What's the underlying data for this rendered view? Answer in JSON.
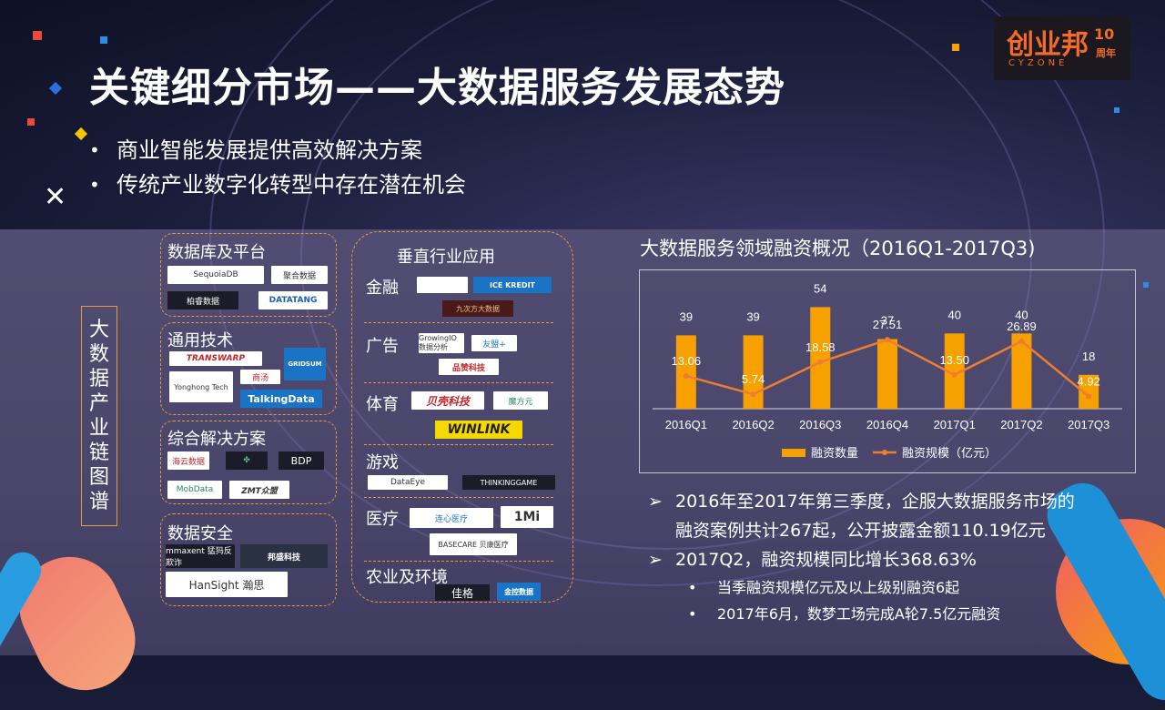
{
  "title": "关键细分市场——大数据服务发展态势",
  "bullets": [
    "商业智能发展提供高效解决方案",
    "传统产业数字化转型中存在潜在机会"
  ],
  "logo": {
    "main": "创业邦",
    "sub": "CYZONE",
    "badge": "10",
    "badge_sub": "周年"
  },
  "vertical_title": [
    "大",
    "数",
    "据",
    "产",
    "业",
    "链",
    "图",
    "谱"
  ],
  "left_sections": [
    {
      "label": "数据库及平台",
      "tags": [
        "SequoiaDB",
        "聚合数据",
        "柏睿数据",
        "DATATANG"
      ]
    },
    {
      "label": "通用技术",
      "tags": [
        "TRANSWARP",
        "GRIDSUM",
        "Yonghong Tech",
        "商汤",
        "TalkingData"
      ]
    },
    {
      "label": "综合解决方案",
      "tags": [
        "海云数据",
        "",
        "BDP",
        "MobData",
        "ZMT众盟"
      ]
    },
    {
      "label": "数据安全",
      "tags": [
        "mmaxent 猛犸反欺诈",
        "邦盛科技",
        "HanSight 瀚思"
      ]
    }
  ],
  "vertical_industry": {
    "header": "垂直行业应用",
    "rows": [
      {
        "label": "金融",
        "tags": [
          "",
          "ICE KREDIT",
          "九次方大数据"
        ]
      },
      {
        "label": "广告",
        "tags": [
          "GrowingIO 数据分析",
          "友盟+",
          "品赞科技"
        ]
      },
      {
        "label": "体育",
        "tags": [
          "贝壳科技",
          "魔方元",
          "WINLINK"
        ]
      },
      {
        "label": "游戏",
        "tags": [
          "DataEye",
          "THINKINGGAME"
        ]
      },
      {
        "label": "医疗",
        "tags": [
          "连心医疗",
          "1Mi",
          "BASECARE 贝康医疗"
        ]
      },
      {
        "label": "农业及环境",
        "tags": [
          "佳格",
          "金控数据"
        ]
      }
    ]
  },
  "chart_title": "大数据服务领域融资概况（2016Q1-2017Q3)",
  "chart_data": {
    "type": "bar",
    "categories": [
      "2016Q1",
      "2016Q2",
      "2016Q3",
      "2016Q4",
      "2017Q1",
      "2017Q2",
      "2017Q3"
    ],
    "series": [
      {
        "name": "融资数量",
        "type": "bar",
        "values": [
          39,
          39,
          54,
          37,
          40,
          40,
          18
        ]
      },
      {
        "name": "融资规模（亿元）",
        "type": "line",
        "values": [
          13.06,
          5.74,
          18.58,
          27.51,
          13.5,
          26.89,
          4.92
        ]
      }
    ],
    "colors": {
      "bar": "#f7a100",
      "line": "#ee7d32"
    },
    "legend": "bottom",
    "ylim": [
      0,
      60
    ],
    "ylim_line": [
      0,
      45
    ]
  },
  "notes": [
    {
      "level": 1,
      "text": "2016年至2017年第三季度，企服大数据服务市场的"
    },
    {
      "level": 0,
      "text": "融资案例共计267起，公开披露金额110.19亿元"
    },
    {
      "level": 1,
      "text": "2017Q2，融资规模同比增长368.63%"
    },
    {
      "level": 2,
      "text": "当季融资规模亿元及以上级别融资6起"
    },
    {
      "level": 2,
      "text": "2017年6月，数梦工场完成A轮7.5亿元融资"
    }
  ]
}
